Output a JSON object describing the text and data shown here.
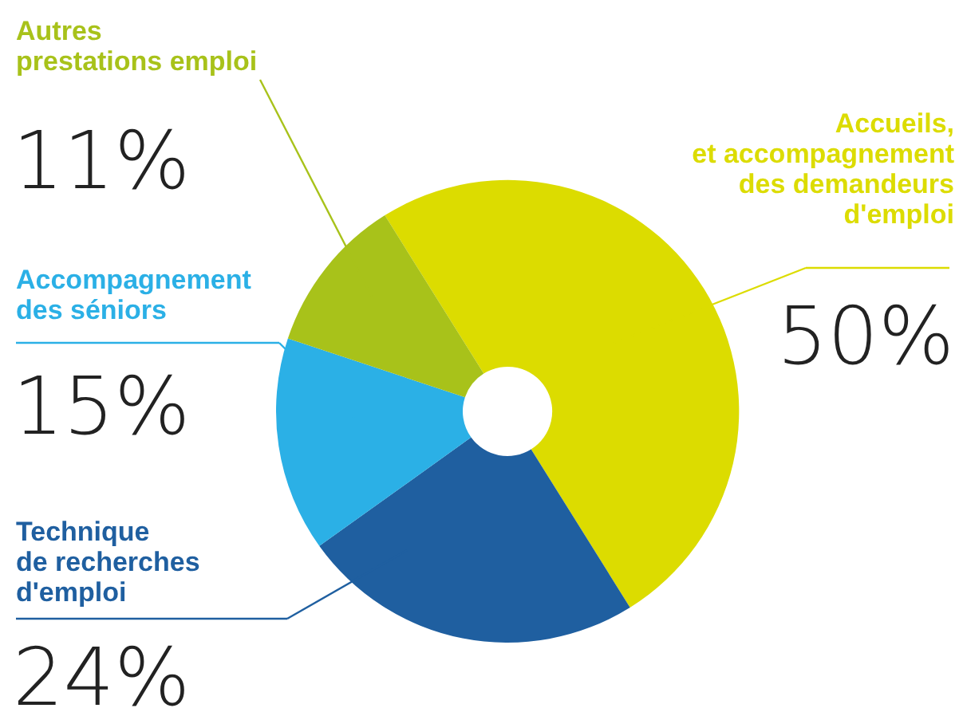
{
  "chart_data": {
    "type": "donut",
    "categories": [
      "Accueils,\net accompagnement\ndes demandeurs\nd'emploi",
      "Technique\nde recherches\nd'emploi",
      "Accompagnement\ndes séniors",
      "Autres\nprestations emploi"
    ],
    "values": [
      50,
      24,
      15,
      11
    ],
    "colors": [
      "#dcdc00",
      "#1f5fa0",
      "#2bb0e6",
      "#a8c21a"
    ],
    "value_labels": [
      "50%",
      "24%",
      "15%",
      "11%"
    ]
  }
}
